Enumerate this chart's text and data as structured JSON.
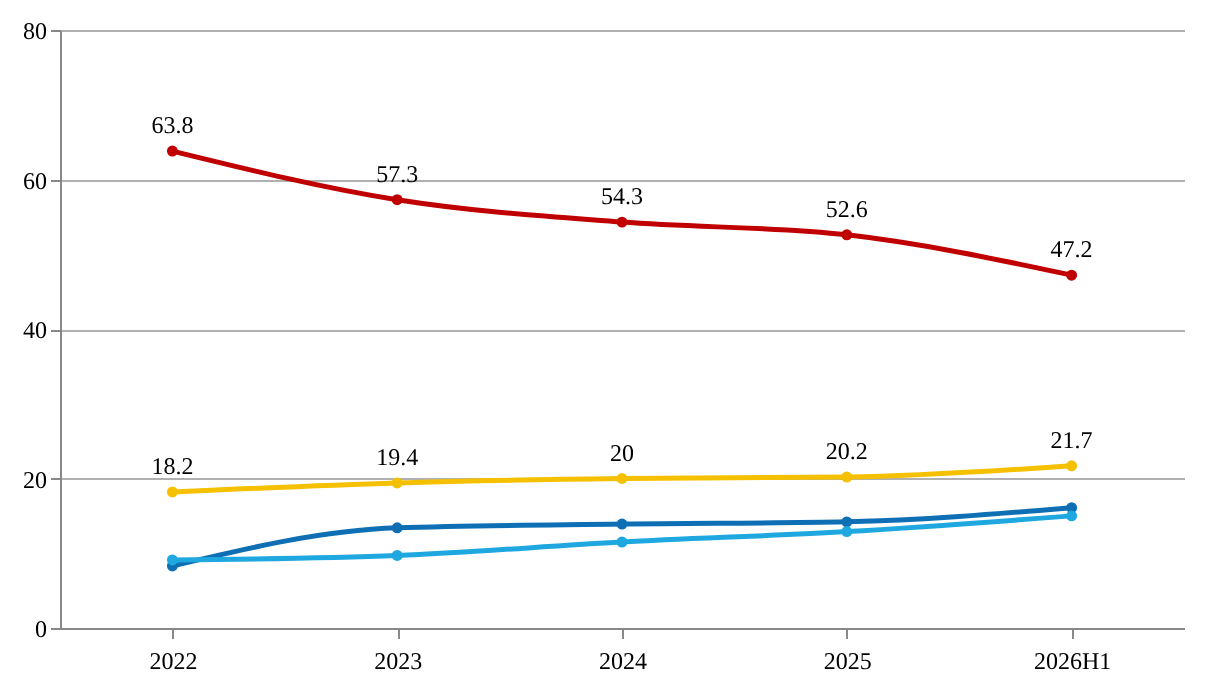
{
  "chart_data": {
    "type": "line",
    "categories": [
      "2022",
      "2023",
      "2024",
      "2025",
      "2026H1"
    ],
    "series": [
      {
        "color": "#c00000",
        "values": [
          63.8,
          57.3,
          54.3,
          52.6,
          47.2
        ],
        "value_labels": [
          "63.8",
          "57.3",
          "54.3",
          "52.6",
          "47.2"
        ]
      },
      {
        "color": "#f5c000",
        "values": [
          18.2,
          19.4,
          20,
          20.2,
          21.7
        ],
        "value_labels": [
          "18.2",
          "19.4",
          "20",
          "20.2",
          "21.7"
        ]
      },
      {
        "color": "#0f6fb5",
        "values": [
          8.3,
          13.4,
          13.9,
          14.2,
          16.1
        ]
      },
      {
        "color": "#1fa8e0",
        "values": [
          9.1,
          9.7,
          11.5,
          12.9,
          15.0
        ]
      }
    ],
    "ylim": [
      0,
      80
    ],
    "yticks": [
      0,
      20,
      40,
      60,
      80
    ],
    "grid": "y",
    "marker": "circle",
    "line_style": "solid"
  }
}
